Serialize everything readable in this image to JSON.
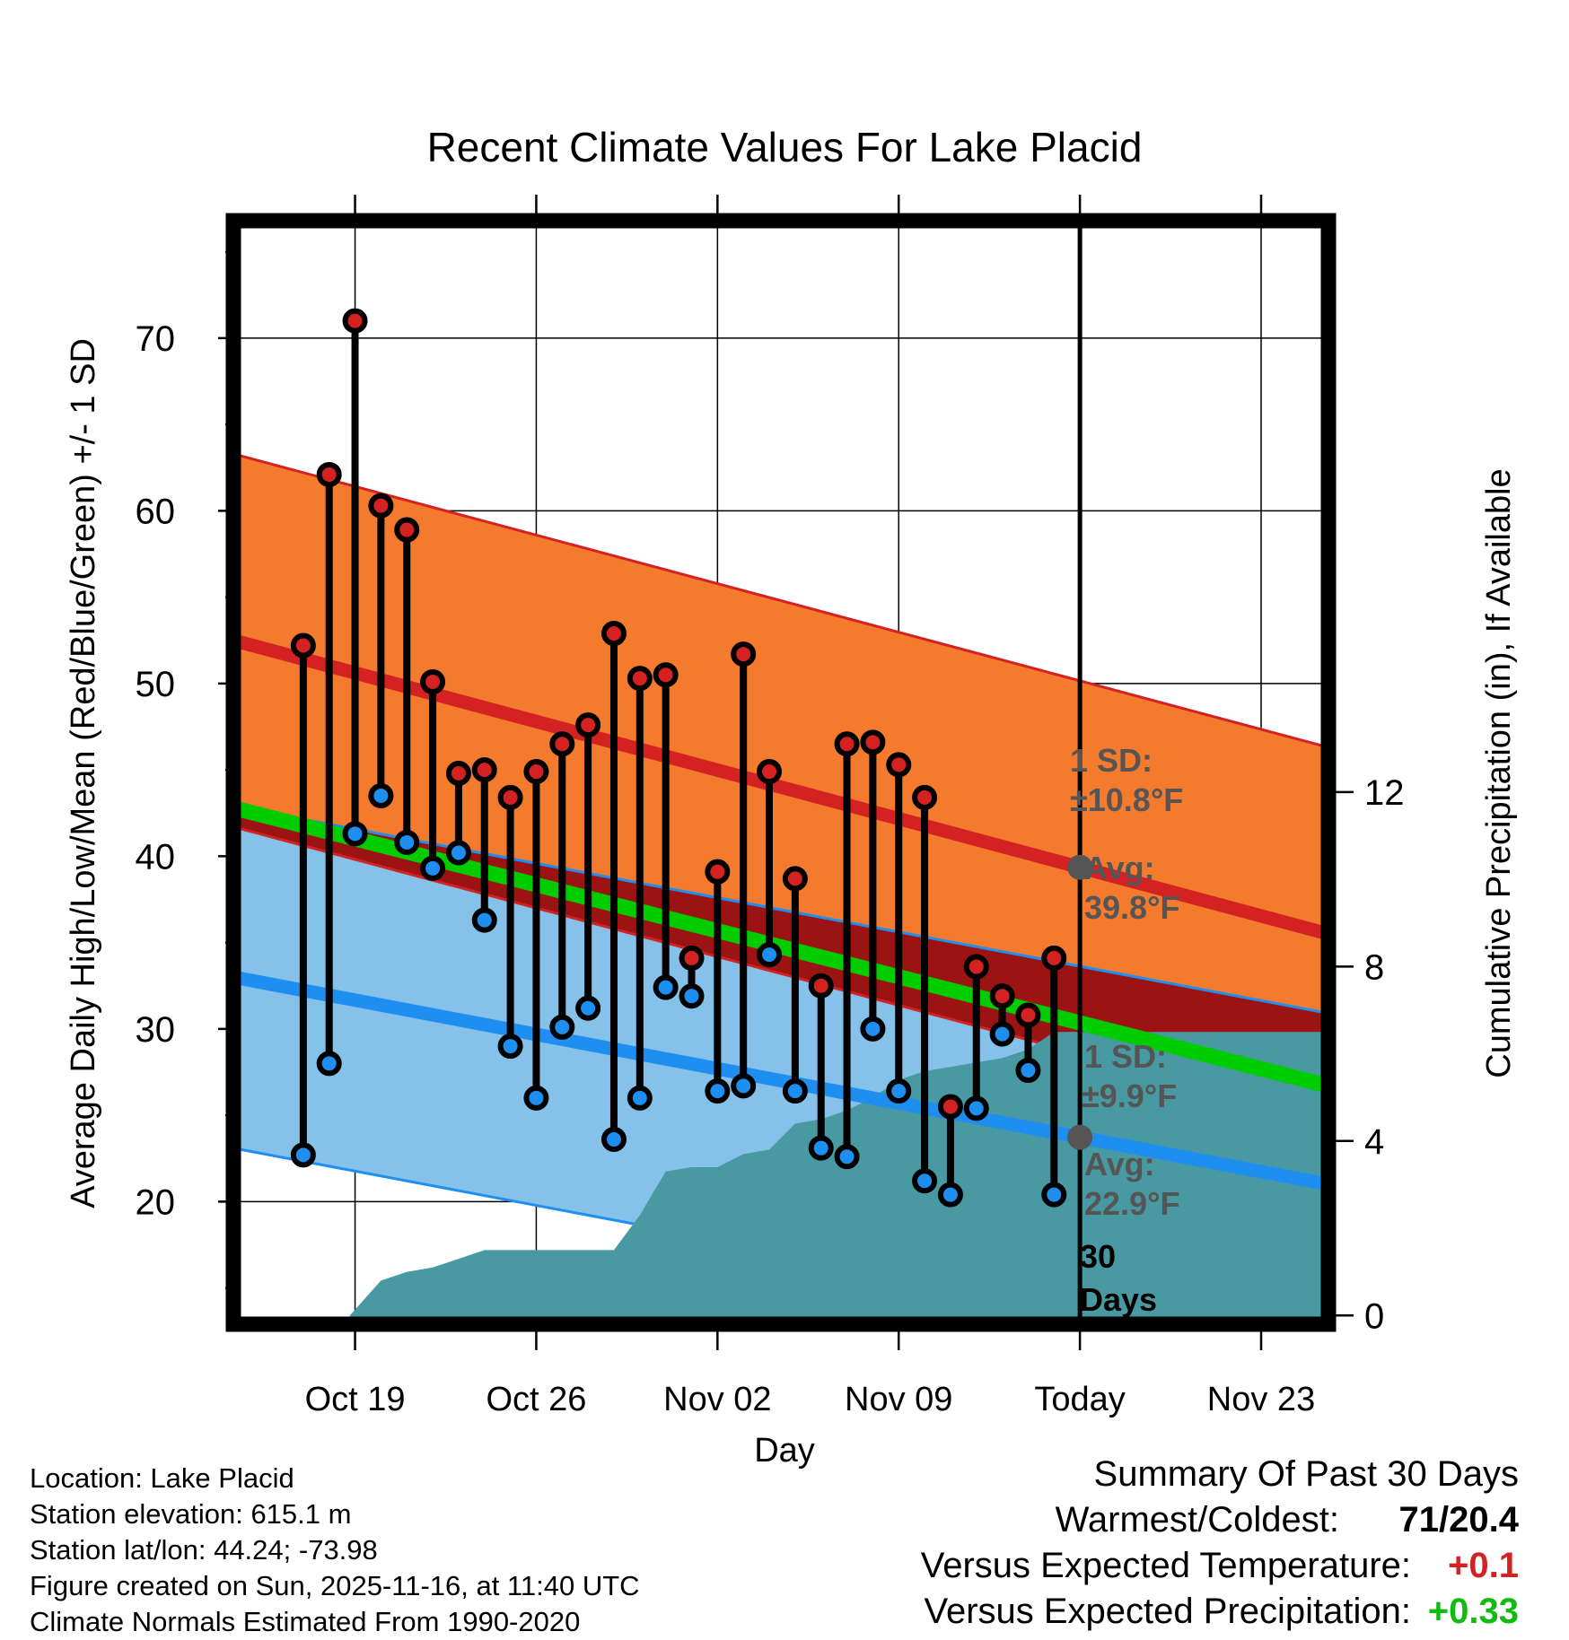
{
  "chart_data": {
    "type": "line",
    "title": "Recent Climate Values For Lake Placid",
    "xlabel": "Day",
    "ylabel": "Average Daily High/Low/Mean (Red/Blue/Green) +/- 1 SD",
    "y2label": "Cumulative Precipitation (in), If Available",
    "xlim_days": [
      -32.7,
      9.6
    ],
    "ylim": [
      12.9,
      76.8
    ],
    "y2lim": [
      -0.2,
      25.1
    ],
    "yticks": [
      20,
      30,
      40,
      50,
      60,
      70
    ],
    "y2ticks": [
      0,
      4,
      8,
      12
    ],
    "xticks": [
      {
        "day": -28,
        "label": "Oct 19"
      },
      {
        "day": -21,
        "label": "Oct 26"
      },
      {
        "day": -14,
        "label": "Nov 02"
      },
      {
        "day": -7,
        "label": "Nov 09"
      },
      {
        "day": 0,
        "label": "Today"
      },
      {
        "day": 7,
        "label": "Nov 23"
      }
    ],
    "normal_high": {
      "start": 52.5,
      "end": 35.5,
      "sd": 10.8
    },
    "normal_low": {
      "start": 33.0,
      "end": 21.0,
      "sd": 9.9
    },
    "normal_mean": {
      "start": 42.8,
      "end": 26.7
    },
    "days": [
      -30,
      -29,
      -28,
      -27,
      -26,
      -25,
      -24,
      -23,
      -22,
      -21,
      -20,
      -19,
      -18,
      -17,
      -16,
      -15,
      -14,
      -13,
      -12,
      -11,
      -10,
      -9,
      -8,
      -7,
      -6,
      -5,
      -4,
      -3,
      -2,
      -1
    ],
    "highs": [
      52.2,
      62.1,
      71.0,
      60.3,
      58.9,
      50.1,
      44.8,
      45.0,
      43.4,
      44.9,
      46.5,
      47.6,
      52.9,
      50.3,
      50.5,
      34.1,
      39.1,
      51.7,
      44.9,
      38.7,
      32.5,
      46.5,
      46.6,
      45.3,
      43.4,
      25.5,
      33.6,
      31.9,
      30.8,
      34.1
    ],
    "lows": [
      22.7,
      28.0,
      41.3,
      43.5,
      40.8,
      39.3,
      40.2,
      36.3,
      29.0,
      26.0,
      30.1,
      31.2,
      23.6,
      26.0,
      32.4,
      31.9,
      26.4,
      26.7,
      34.3,
      26.4,
      23.1,
      22.6,
      30.0,
      26.4,
      21.2,
      20.4,
      25.4,
      29.7,
      27.6,
      20.4
    ],
    "precip_cumulative": {
      "days": [
        -28.2,
        -27,
        -26,
        -25,
        -24,
        -23,
        -22,
        -21,
        -20,
        -19,
        -18,
        -17,
        -16,
        -15,
        -14,
        -13,
        -12,
        -11,
        -10,
        -9,
        -8,
        -7,
        -6,
        -5,
        -4,
        -3,
        -2,
        -1,
        9.6
      ],
      "values": [
        0,
        0.8,
        1.0,
        1.1,
        1.3,
        1.5,
        1.5,
        1.5,
        1.5,
        1.5,
        1.5,
        2.3,
        3.3,
        3.4,
        3.4,
        3.7,
        3.8,
        4.4,
        4.5,
        4.7,
        5.0,
        5.4,
        5.6,
        5.7,
        5.8,
        5.9,
        6.1,
        6.5,
        6.5
      ]
    },
    "annotations": {
      "high_sd_label": "1 SD:",
      "high_sd_value": "±10.8°F",
      "high_avg_label": "Avg:",
      "high_avg_value": "39.8°F",
      "low_sd_label": "1 SD:",
      "low_sd_value": "±9.9°F",
      "low_avg_label": "Avg:",
      "low_avg_value": "22.9°F",
      "window_number": "30",
      "window_unit": "Days"
    },
    "colors": {
      "high_band": "#f47a2e",
      "high_line": "#d42222",
      "low_band": "#85c1e8",
      "low_line": "#1e8ff0",
      "mean_line": "#00cc00",
      "overlap": "#9c1313",
      "precip": "#4899a2",
      "high_dot": "#d42222",
      "low_dot": "#1e8ff0",
      "avg_marker": "#555555",
      "annotation_text": "#555555"
    }
  },
  "info": {
    "location": "Location: Lake Placid",
    "elevation": "Station elevation: 615.1 m",
    "latlon": "Station lat/lon: 44.24; -73.98",
    "created": "Figure created on Sun, 2025-11-16, at 11:40 UTC",
    "normals": "Climate Normals Estimated From 1990-2020"
  },
  "summary": {
    "title": "Summary Of Past 30 Days",
    "warmest_label": "Warmest/Coldest:",
    "warmest_value": "71/20.4",
    "temp_label": "Versus Expected Temperature:",
    "temp_value": "+0.1",
    "temp_color": "#d42222",
    "precip_label": "Versus Expected Precipitation:",
    "precip_value": "+0.33",
    "precip_color": "#11bb11"
  }
}
